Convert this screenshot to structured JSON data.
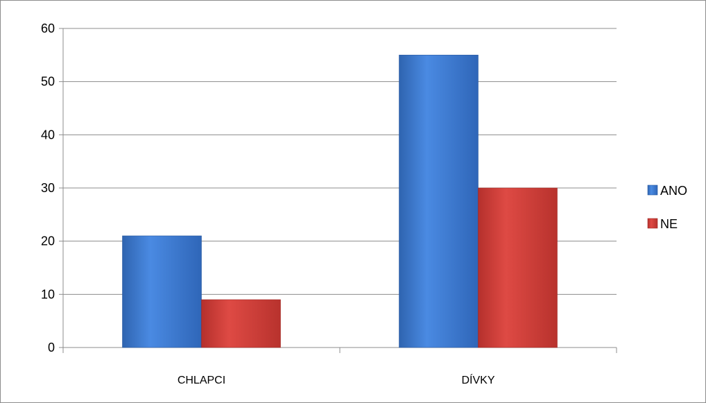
{
  "chart_data": {
    "type": "bar",
    "categories": [
      "CHLAPCI",
      "DÍVKY"
    ],
    "series": [
      {
        "name": "ANO",
        "values": [
          21,
          55
        ],
        "color": "#3f7fd6"
      },
      {
        "name": "NE",
        "values": [
          9,
          30
        ],
        "color": "#d2403b"
      }
    ],
    "ylim": [
      0,
      60
    ],
    "yticks": [
      0,
      10,
      20,
      30,
      40,
      50,
      60
    ],
    "grid": true,
    "legend_position": "right"
  }
}
